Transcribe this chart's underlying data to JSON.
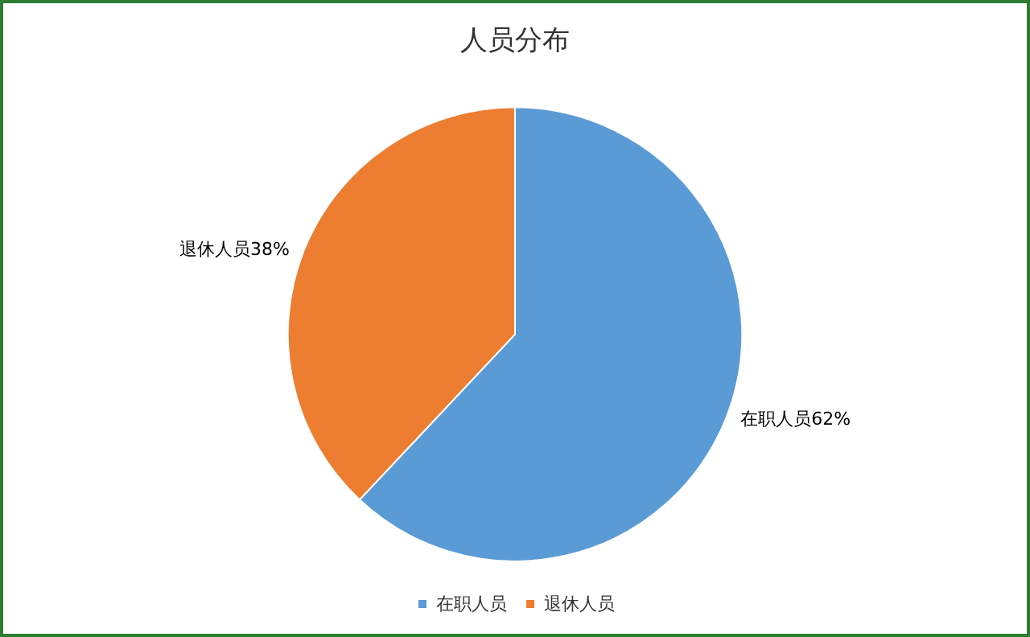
{
  "chart_data": {
    "type": "pie",
    "title": "人员分布",
    "categories": [
      "在职人员",
      "退休人员"
    ],
    "values": [
      62,
      38
    ],
    "colors": [
      "#5b9bd5",
      "#ed7d31"
    ],
    "value_labels": [
      "在职人员62%",
      "退休人员38%"
    ],
    "legend": "bottom"
  }
}
